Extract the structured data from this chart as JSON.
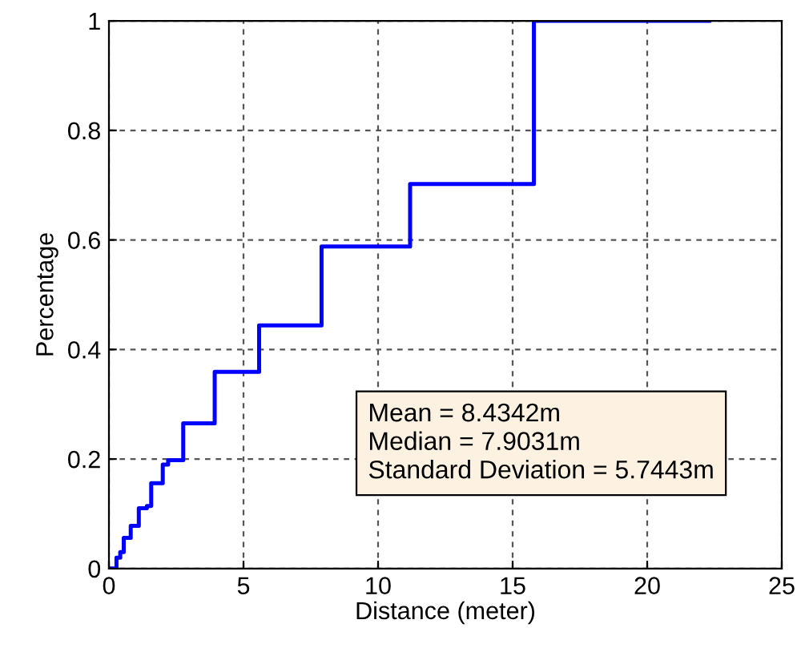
{
  "chart_data": {
    "type": "step",
    "xlabel": "Distance (meter)",
    "ylabel": "Percentage",
    "x": [
      0,
      0.28,
      0.42,
      0.55,
      0.81,
      1.11,
      1.41,
      1.57,
      2.0,
      2.2,
      2.76,
      3.93,
      5.58,
      7.9,
      11.19,
      15.79,
      22.3
    ],
    "series": [
      {
        "color": "#0000ff",
        "values": [
          0,
          0.02,
          0.03,
          0.056,
          0.078,
          0.11,
          0.114,
          0.156,
          0.19,
          0.198,
          0.265,
          0.359,
          0.444,
          0.588,
          0.702,
          1.0,
          1.0
        ]
      }
    ],
    "xlim": [
      0,
      25
    ],
    "ylim": [
      0,
      1
    ],
    "xticks": [
      0,
      5,
      10,
      15,
      20,
      25
    ],
    "yticks": [
      0,
      0.2,
      0.4,
      0.6,
      0.8,
      1
    ],
    "grid": true,
    "line_style": "solid",
    "marker": "none",
    "annotations": [
      "Mean = 8.4342m\nMedian = 7.9031m\nStandard Deviation = 5.7443m"
    ]
  }
}
